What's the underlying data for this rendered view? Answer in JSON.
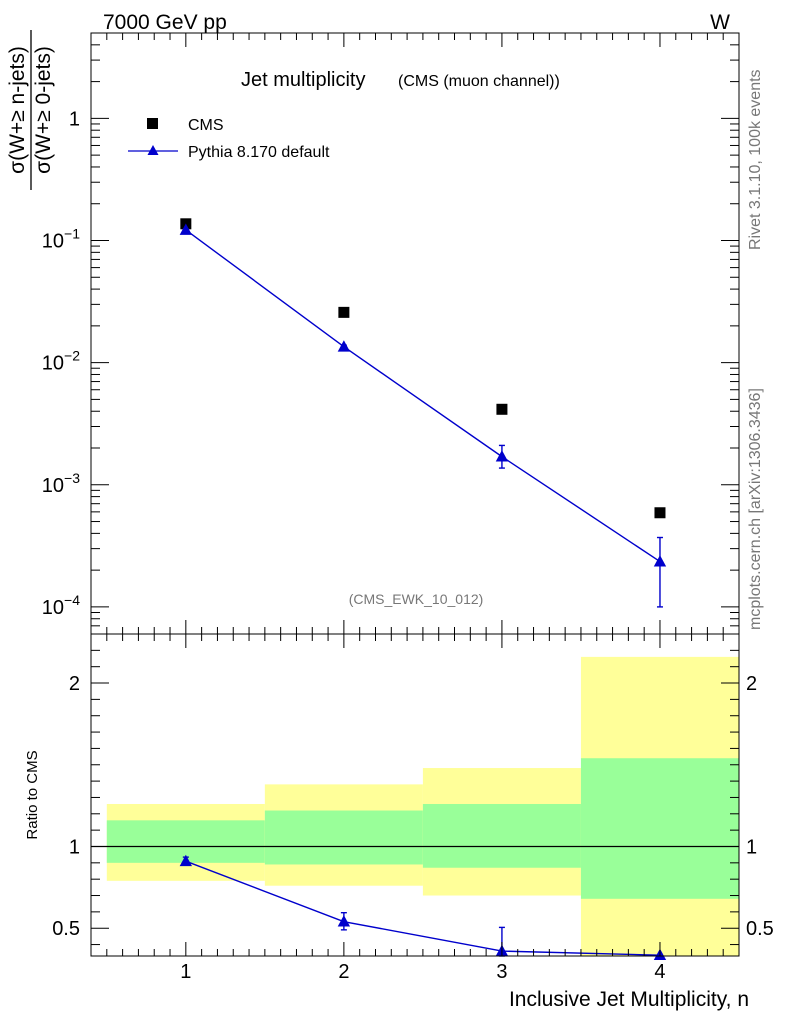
{
  "header": {
    "left": "7000 GeV pp",
    "right": "W"
  },
  "side_labels": {
    "rivet": "Rivet 3.1.10,  100k events",
    "source": "mcplots.cern.ch [arXiv:1306.3436]"
  },
  "chart_data": [
    {
      "type": "scatter",
      "title": "Jet multiplicity",
      "subtitle": "(CMS (muon channel))",
      "watermark": "(CMS_EWK_10_012)",
      "ylabel_num": "σ(W+≥ n-jets)",
      "ylabel_den": "σ(W+≥ 0-jets)",
      "yscale": "log",
      "ylim": [
        6e-05,
        5
      ],
      "xlim": [
        0.4,
        4.5
      ],
      "x_ticks": [
        1,
        2,
        3,
        4
      ],
      "y_ticks": [
        {
          "value": 1,
          "base": "1",
          "exp": ""
        },
        {
          "value": 0.1,
          "base": "10",
          "exp": "−1"
        },
        {
          "value": 0.01,
          "base": "10",
          "exp": "−2"
        },
        {
          "value": 0.001,
          "base": "10",
          "exp": "−3"
        },
        {
          "value": 0.0001,
          "base": "10",
          "exp": "−4"
        }
      ],
      "legend_position": "top-left",
      "series": [
        {
          "name": "CMS",
          "marker": "square",
          "color": "#000000",
          "points": [
            {
              "x": 1,
              "y": 0.137
            },
            {
              "x": 2,
              "y": 0.0258
            },
            {
              "x": 3,
              "y": 0.00415
            },
            {
              "x": 4,
              "y": 0.00059
            }
          ]
        },
        {
          "name": "Pythia 8.170 default",
          "marker": "triangle",
          "color": "#0000cc",
          "line": true,
          "points": [
            {
              "x": 1,
              "y": 0.122,
              "ylo": 0.12,
              "yhi": 0.124
            },
            {
              "x": 2,
              "y": 0.0135,
              "ylo": 0.0131,
              "yhi": 0.0139
            },
            {
              "x": 3,
              "y": 0.0017,
              "ylo": 0.00137,
              "yhi": 0.0021
            },
            {
              "x": 4,
              "y": 0.000235,
              "ylo": 0.0001,
              "yhi": 0.00037
            }
          ]
        }
      ]
    },
    {
      "type": "scatter",
      "ylabel": "Ratio to CMS",
      "xlabel": "Inclusive Jet Multiplicity, n",
      "ylim": [
        0.33,
        2.3
      ],
      "xlim": [
        0.4,
        4.5
      ],
      "x_ticks": [
        1,
        2,
        3,
        4
      ],
      "y_ticks": [
        "0.5",
        "1",
        "2"
      ],
      "y_tick_values": [
        0.5,
        1,
        2
      ],
      "reference_line": 1,
      "bands": [
        {
          "x_from": 0.5,
          "x_to": 1.5,
          "stat_lo": 0.9,
          "stat_hi": 1.16,
          "tot_lo": 0.79,
          "tot_hi": 1.26
        },
        {
          "x_from": 1.5,
          "x_to": 2.5,
          "stat_lo": 0.89,
          "stat_hi": 1.22,
          "tot_lo": 0.76,
          "tot_hi": 1.38
        },
        {
          "x_from": 2.5,
          "x_to": 3.5,
          "stat_lo": 0.87,
          "stat_hi": 1.26,
          "tot_lo": 0.7,
          "tot_hi": 1.48
        },
        {
          "x_from": 3.5,
          "x_to": 4.5,
          "stat_lo": 0.68,
          "stat_hi": 1.54,
          "tot_lo": 0.33,
          "tot_hi": 2.16
        }
      ],
      "band_colors": {
        "stat": "#99ff99",
        "total": "#ffff99"
      },
      "series": [
        {
          "name": "Pythia 8.170 default",
          "color": "#0000cc",
          "points": [
            {
              "x": 1,
              "y": 0.91,
              "ylo": 0.89,
              "yhi": 0.935
            },
            {
              "x": 2,
              "y": 0.54,
              "ylo": 0.49,
              "yhi": 0.595
            },
            {
              "x": 3,
              "y": 0.36,
              "ylo": 0.33,
              "yhi": 0.505
            },
            {
              "x": 4,
              "y": 0.335
            }
          ]
        }
      ]
    }
  ]
}
